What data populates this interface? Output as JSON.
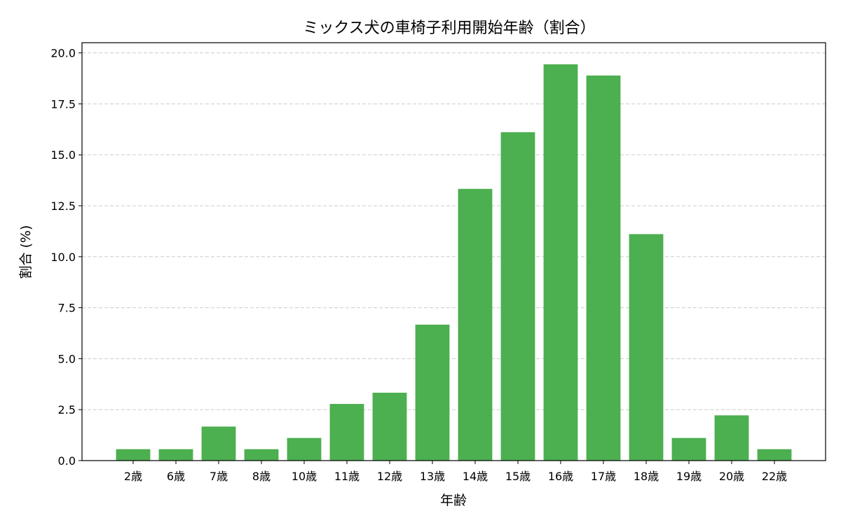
{
  "chart_data": {
    "type": "bar",
    "title": "ミックス犬の車椅子利用開始年齢（割合）",
    "xlabel": "年齢",
    "ylabel": "割合 (%)",
    "categories": [
      "2歳",
      "6歳",
      "7歳",
      "8歳",
      "10歳",
      "11歳",
      "12歳",
      "13歳",
      "14歳",
      "15歳",
      "16歳",
      "17歳",
      "18歳",
      "19歳",
      "20歳",
      "22歳"
    ],
    "values": [
      0.56,
      0.56,
      1.67,
      0.56,
      1.11,
      2.78,
      3.33,
      6.67,
      13.33,
      16.11,
      19.44,
      18.89,
      11.11,
      1.11,
      2.22,
      0.56
    ],
    "ylim": [
      0,
      20.5
    ],
    "yticks": [
      "0.0",
      "2.5",
      "5.0",
      "7.5",
      "10.0",
      "12.5",
      "15.0",
      "17.5",
      "20.0"
    ],
    "bar_color": "#4caf50",
    "grid": "y-dashed",
    "legend": "none"
  }
}
